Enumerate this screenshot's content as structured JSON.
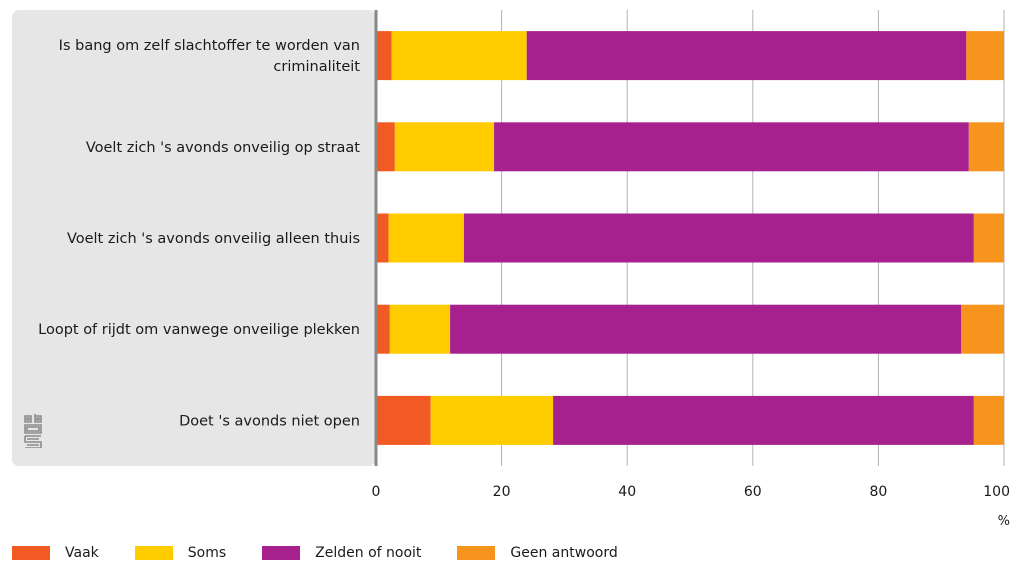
{
  "colors": {
    "vaak": "#f15a22",
    "soms": "#ffcc00",
    "zelden": "#a6218e",
    "geen": "#f7941d",
    "grid": "#b3b3b3",
    "axis": "#888888",
    "panel": "#e6e6e6",
    "logo": "#8c8c8c"
  },
  "logo": {
    "icon": "cbs-logo-icon"
  },
  "chart_data": {
    "type": "bar",
    "orientation": "horizontal",
    "stacked": true,
    "categories": [
      [
        "Is bang om zelf slachtoffer te worden van",
        "criminaliteit"
      ],
      [
        "Voelt zich 's avonds onveilig op straat"
      ],
      [
        "Voelt zich 's avonds onveilig alleen thuis"
      ],
      [
        "Loopt of rijdt om vanwege onveilige plekken"
      ],
      [
        "Doet 's avonds niet open"
      ]
    ],
    "series": [
      {
        "name": "Vaak",
        "values": [
          2.5,
          3.0,
          2.0,
          2.2,
          8.7
        ],
        "color": "#f15a22"
      },
      {
        "name": "Soms",
        "values": [
          21.5,
          15.8,
          12.0,
          9.6,
          19.5
        ],
        "color": "#ffcc00"
      },
      {
        "name": "Zelden of nooit",
        "values": [
          70.0,
          75.6,
          81.2,
          81.4,
          67.0
        ],
        "color": "#a6218e"
      },
      {
        "name": "Geen antwoord",
        "values": [
          6.0,
          5.6,
          4.8,
          6.8,
          4.8
        ],
        "color": "#f7941d"
      }
    ],
    "xlim": [
      0,
      100
    ],
    "xticks": [
      "0",
      "20",
      "40",
      "60",
      "80",
      "100"
    ],
    "xunit": "%",
    "grid": true,
    "legend": "bottom-left"
  }
}
